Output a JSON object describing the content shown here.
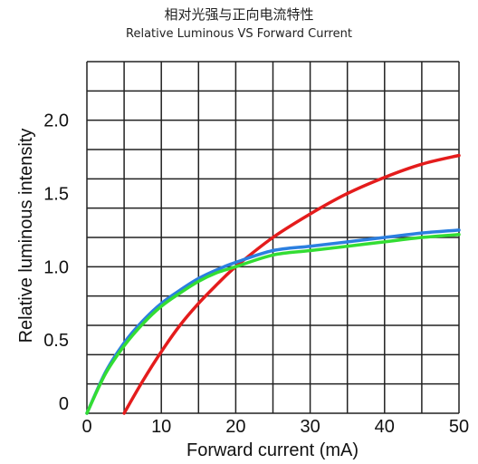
{
  "chart_data": {
    "type": "line",
    "title": "相对光强与正向电流特性",
    "subtitle": "Relative Luminous VS Forward Current",
    "xlabel": "Forward current (mA)",
    "ylabel": "Relative luminous intensity",
    "xlim": [
      0,
      50
    ],
    "ylim": [
      0,
      2.4
    ],
    "x_ticks": [
      "0",
      "10",
      "20",
      "30",
      "40",
      "50"
    ],
    "y_ticks": [
      "0",
      "0.5",
      "1.0",
      "1.5",
      "2.0"
    ],
    "grid": true,
    "legend": "none",
    "series": [
      {
        "color": "#e41c1c",
        "x": [
          5,
          7.5,
          10,
          12.5,
          15,
          17.5,
          20,
          25,
          30,
          35,
          40,
          45,
          50
        ],
        "y": [
          0,
          0.22,
          0.42,
          0.6,
          0.75,
          0.88,
          1.0,
          1.2,
          1.36,
          1.5,
          1.61,
          1.7,
          1.76
        ]
      },
      {
        "color": "#2b7fe0",
        "x": [
          0,
          2.5,
          5,
          7.5,
          10,
          12.5,
          15,
          17.5,
          20,
          25,
          30,
          35,
          40,
          45,
          50
        ],
        "y": [
          0,
          0.28,
          0.48,
          0.63,
          0.75,
          0.84,
          0.92,
          0.98,
          1.03,
          1.11,
          1.14,
          1.17,
          1.2,
          1.23,
          1.25
        ]
      },
      {
        "color": "#33dd33",
        "x": [
          0,
          2.5,
          5,
          7.5,
          10,
          12.5,
          15,
          17.5,
          20,
          25,
          30,
          35,
          40,
          45,
          50
        ],
        "y": [
          0,
          0.27,
          0.46,
          0.61,
          0.73,
          0.82,
          0.9,
          0.96,
          1.0,
          1.08,
          1.11,
          1.14,
          1.17,
          1.2,
          1.22
        ]
      }
    ]
  }
}
